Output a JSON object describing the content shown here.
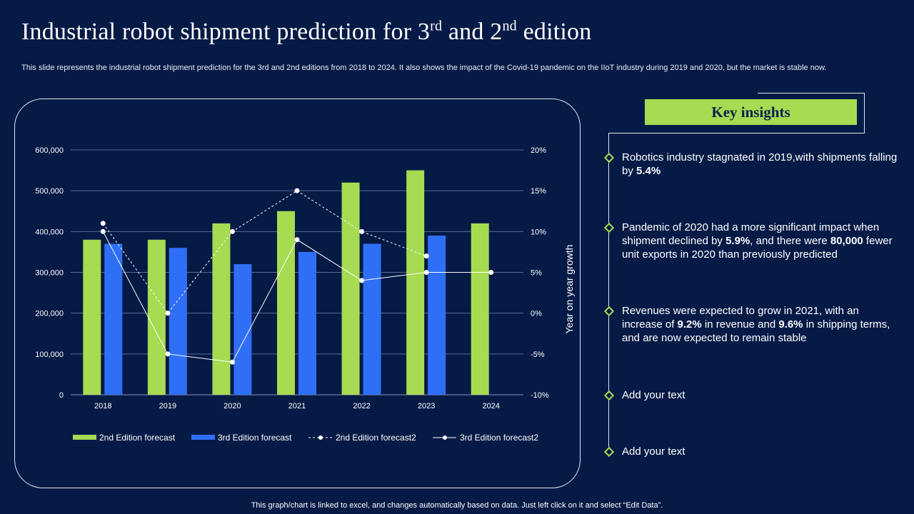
{
  "title": {
    "part1": "Industrial robot shipment prediction  for 3",
    "sup1": "rd",
    "part2": " and 2",
    "sup2": "nd",
    "part3": " edition"
  },
  "subtitle": "This slide represents the industrial robot shipment prediction for the 3rd and 2nd editions from 2018 to 2024. It also shows the impact of the Covid-19 pandemic on the IIoT industry during 2019 and 2020, but the market is stable now.",
  "insights": {
    "heading": "Key insights",
    "items": [
      {
        "pre": "Robotics industry  stagnated in 2019,with shipments falling by ",
        "b1": "5.4%",
        "mid": "",
        "b2": "",
        "post": ""
      },
      {
        "pre": "Pandemic of 2020 had a more significant impact when shipment declined by ",
        "b1": "5.9%",
        "mid": ", and there were ",
        "b2": "80,000",
        "post": " fewer unit exports in 2020 than previously predicted"
      },
      {
        "pre": "Revenues were expected to grow in 2021, with an increase of ",
        "b1": "9.2%",
        "mid": " in revenue and ",
        "b2": "9.6%",
        "post": " in shipping terms, and are now expected to remain stable"
      },
      {
        "pre": "Add your text",
        "b1": "",
        "mid": "",
        "b2": "",
        "post": ""
      },
      {
        "pre": "Add your text",
        "b1": "",
        "mid": "",
        "b2": "",
        "post": ""
      }
    ]
  },
  "footer": "This graph/chart is linked to excel,  and changes automatically based on data. Just left click on it and select “Edit Data”.",
  "colors": {
    "green": "#a6db52",
    "blue": "#2f6ff5",
    "line": "#ffffff",
    "background": "#061a46"
  },
  "chart_data": {
    "type": "bar",
    "categories": [
      "2018",
      "2019",
      "2020",
      "2021",
      "2022",
      "2023",
      "2024"
    ],
    "series": [
      {
        "name": "2nd Edition forecast",
        "kind": "bar",
        "axis": "left",
        "values": [
          380000,
          380000,
          420000,
          450000,
          520000,
          550000,
          420000
        ]
      },
      {
        "name": "3rd Edition forecast",
        "kind": "bar",
        "axis": "left",
        "values": [
          370000,
          360000,
          320000,
          350000,
          370000,
          390000,
          null
        ]
      },
      {
        "name": "2nd Edition forecast2",
        "kind": "line",
        "style": "dashed",
        "axis": "right",
        "values": [
          11,
          0,
          10,
          15,
          10,
          7,
          null
        ]
      },
      {
        "name": "3rd Edition forecast2",
        "kind": "line",
        "style": "solid",
        "axis": "right",
        "values": [
          10,
          -5,
          -6,
          9,
          4,
          5,
          5
        ]
      }
    ],
    "y_left": {
      "min": 0,
      "max": 600000,
      "ticks": [
        "0",
        "100,000",
        "200,000",
        "300,000",
        "400,000",
        "500,000",
        "600,000"
      ]
    },
    "y_right": {
      "min": -10,
      "max": 20,
      "label": "Year on year growth",
      "ticks": [
        "-10%",
        "-5%",
        "0%",
        "5%",
        "10%",
        "15%",
        "20%"
      ]
    },
    "grid": true,
    "legend_position": "bottom"
  }
}
